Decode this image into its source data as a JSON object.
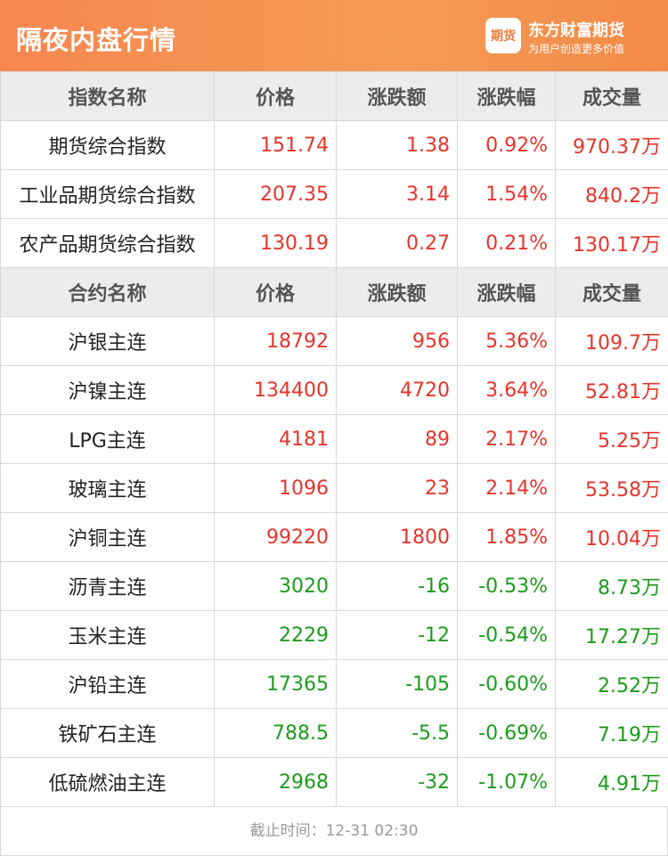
{
  "header": {
    "title": "隔夜内盘行情",
    "logo_text": "期货",
    "brand": "东方财富期货",
    "slogan": "为用户创造更多价值"
  },
  "colors": {
    "up": "#e4352b",
    "down": "#1c9b1c"
  },
  "sections": [
    {
      "columns": [
        "指数名称",
        "价格",
        "涨跌额",
        "涨跌幅",
        "成交量"
      ],
      "rows": [
        [
          "期货综合指数",
          "151.74",
          "1.38",
          "0.92%",
          "970.37万"
        ],
        [
          "工业品期货综合指数",
          "207.35",
          "3.14",
          "1.54%",
          "840.2万"
        ],
        [
          "农产品期货综合指数",
          "130.19",
          "0.27",
          "0.21%",
          "130.17万"
        ]
      ]
    },
    {
      "columns": [
        "合约名称",
        "价格",
        "涨跌额",
        "涨跌幅",
        "成交量"
      ],
      "rows": [
        [
          "沪银主连",
          "18792",
          "956",
          "5.36%",
          "109.7万"
        ],
        [
          "沪镍主连",
          "134400",
          "4720",
          "3.64%",
          "52.81万"
        ],
        [
          "LPG主连",
          "4181",
          "89",
          "2.17%",
          "5.25万"
        ],
        [
          "玻璃主连",
          "1096",
          "23",
          "2.14%",
          "53.58万"
        ],
        [
          "沪铜主连",
          "99220",
          "1800",
          "1.85%",
          "10.04万"
        ],
        [
          "沥青主连",
          "3020",
          "-16",
          "-0.53%",
          "8.73万"
        ],
        [
          "玉米主连",
          "2229",
          "-12",
          "-0.54%",
          "17.27万"
        ],
        [
          "沪铅主连",
          "17365",
          "-105",
          "-0.60%",
          "2.52万"
        ],
        [
          "铁矿石主连",
          "788.5",
          "-5.5",
          "-0.69%",
          "7.19万"
        ],
        [
          "低硫燃油主连",
          "2968",
          "-32",
          "-1.07%",
          "4.91万"
        ]
      ]
    }
  ],
  "footer": {
    "text": "截止时间：12-31 02:30"
  }
}
